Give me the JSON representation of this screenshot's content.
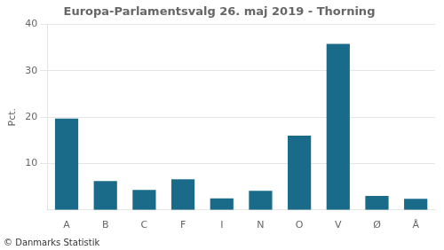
{
  "chart_data": {
    "type": "bar",
    "title": "Europa-Parlamentsvalg 26. maj 2019 - Thorning",
    "categories": [
      "A",
      "B",
      "C",
      "F",
      "I",
      "N",
      "O",
      "V",
      "Ø",
      "Å"
    ],
    "values": [
      19.7,
      6.2,
      4.3,
      6.6,
      2.5,
      4.1,
      16.0,
      35.8,
      3.0,
      2.4
    ],
    "color": "#1a6b8a",
    "ylabel": "Pct.",
    "ylim": [
      0,
      40
    ],
    "yticks": [
      10,
      20,
      30,
      40
    ],
    "grid": true,
    "footer": "© Danmarks Statistik"
  }
}
